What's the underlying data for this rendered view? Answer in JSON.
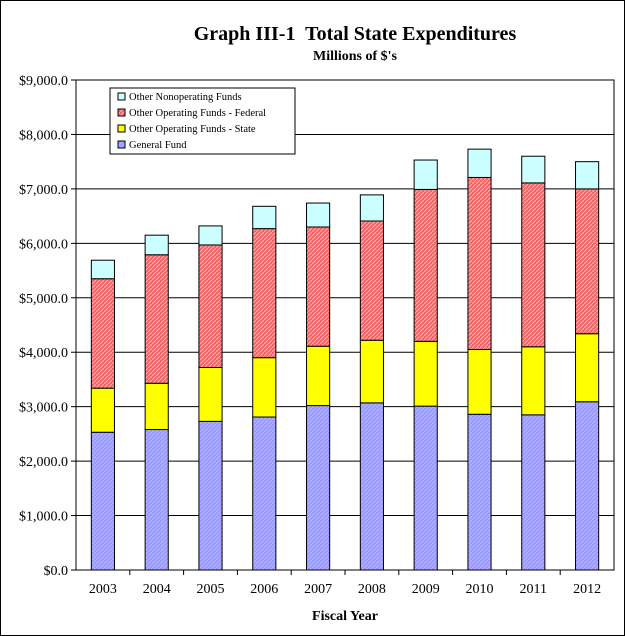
{
  "chart_data": {
    "type": "bar",
    "stacked": true,
    "title": "Graph III-1  Total State Expenditures",
    "subtitle": "Millions of $'s",
    "xlabel": "Fiscal Year",
    "ylabel": "",
    "ylim": [
      0,
      9000
    ],
    "yticks": [
      "$0.0",
      "$1,000.0",
      "$2,000.0",
      "$3,000.0",
      "$4,000.0",
      "$5,000.0",
      "$6,000.0",
      "$7,000.0",
      "$8,000.0",
      "$9,000.0"
    ],
    "grid": true,
    "legend_position": "top-left",
    "categories": [
      "2003",
      "2004",
      "2005",
      "2006",
      "2007",
      "2008",
      "2009",
      "2010",
      "2011",
      "2012"
    ],
    "series": [
      {
        "name": "General Fund",
        "color": "#9999ff",
        "values": [
          2530,
          2580,
          2730,
          2810,
          3020,
          3070,
          3010,
          2860,
          2850,
          3090
        ]
      },
      {
        "name": "Other Operating Funds - State",
        "color": "#ffff00",
        "values": [
          810,
          850,
          990,
          1090,
          1090,
          1150,
          1190,
          1190,
          1250,
          1250
        ]
      },
      {
        "name": "Other Operating Funds - Federal",
        "color": "#f07070",
        "values": [
          2010,
          2360,
          2250,
          2370,
          2190,
          2190,
          2790,
          3160,
          3010,
          2660
        ]
      },
      {
        "name": "Other Nonoperating Funds",
        "color": "#ccffff",
        "values": [
          340,
          360,
          350,
          410,
          440,
          480,
          540,
          520,
          490,
          500
        ]
      }
    ]
  }
}
